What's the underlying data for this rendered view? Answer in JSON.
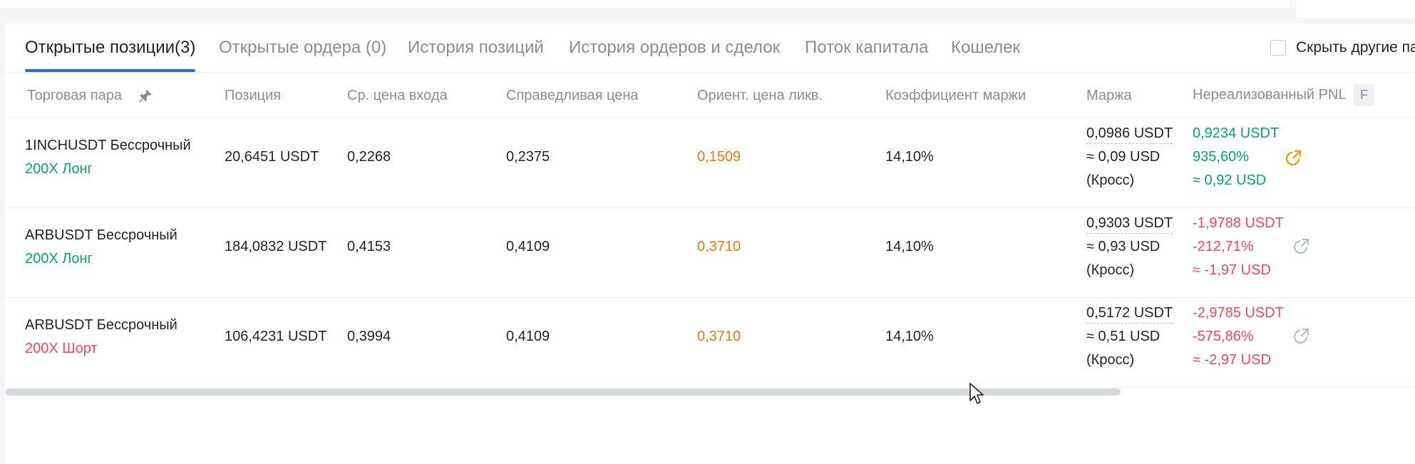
{
  "tabs": [
    {
      "label": "Открытые позиции(3)",
      "active": true
    },
    {
      "label": "Открытые ордера (0)"
    },
    {
      "label": "История позиций"
    },
    {
      "label": "История ордеров и сделок"
    },
    {
      "label": "Поток капитала"
    },
    {
      "label": "Кошелек"
    }
  ],
  "hide_other_pairs": {
    "label": "Скрыть другие па",
    "checked": false
  },
  "columns": {
    "pair": "Торговая пара",
    "position": "Позиция",
    "entry": "Ср. цена входа",
    "fair": "Справедливая цена",
    "liq": "Ориент. цена ликв.",
    "margin_ratio": "Коэффициент маржи",
    "margin": "Маржа",
    "pnl": "Нереализованный PNL",
    "pnl_badge": "F"
  },
  "rows": [
    {
      "pair": "1INCHUSDT Бессрочный",
      "side": "200X Лонг",
      "position": "20,6451 USDT",
      "entry": "0,2268",
      "fair": "0,2375",
      "liq": "0,1509",
      "margin_ratio": "14,10%",
      "margin_usdt": "0,0986 USDT",
      "margin_usd": "≈ 0,09 USD",
      "margin_mode": "(Кросс)",
      "pnl_usdt": "0,9234 USDT",
      "pnl_pct": "935,60%",
      "pnl_usd": "≈ 0,92 USD"
    },
    {
      "pair": "ARBUSDT Бессрочный",
      "side": "200X Лонг",
      "position": "184,0832 USDT",
      "entry": "0,4153",
      "fair": "0,4109",
      "liq": "0,3710",
      "margin_ratio": "14,10%",
      "margin_usdt": "0,9303 USDT",
      "margin_usd": "≈ 0,93 USD",
      "margin_mode": "(Кросс)",
      "pnl_usdt": "-1,9788 USDT",
      "pnl_pct": "-212,71%",
      "pnl_usd": "≈ -1,97 USD"
    },
    {
      "pair": "ARBUSDT Бессрочный",
      "side": "200X Шорт",
      "position": "106,4231 USDT",
      "entry": "0,3994",
      "fair": "0,4109",
      "liq": "0,3710",
      "margin_ratio": "14,10%",
      "margin_usdt": "0,5172 USDT",
      "margin_usd": "≈ 0,51 USD",
      "margin_mode": "(Кросс)",
      "pnl_usdt": "-2,9785 USDT",
      "pnl_pct": "-575,86%",
      "pnl_usd": "≈ -2,97 USD"
    }
  ],
  "colors": {
    "accent": "#1a6ff5",
    "long": "#03a66d",
    "short": "#f6465d",
    "liq": "#ea7a0a",
    "share_active": "#f0a010",
    "share_inactive": "#b7bdc6"
  },
  "icons": {
    "pin": "pin-icon",
    "share": "share-icon",
    "cursor": "mouse-cursor-icon"
  }
}
